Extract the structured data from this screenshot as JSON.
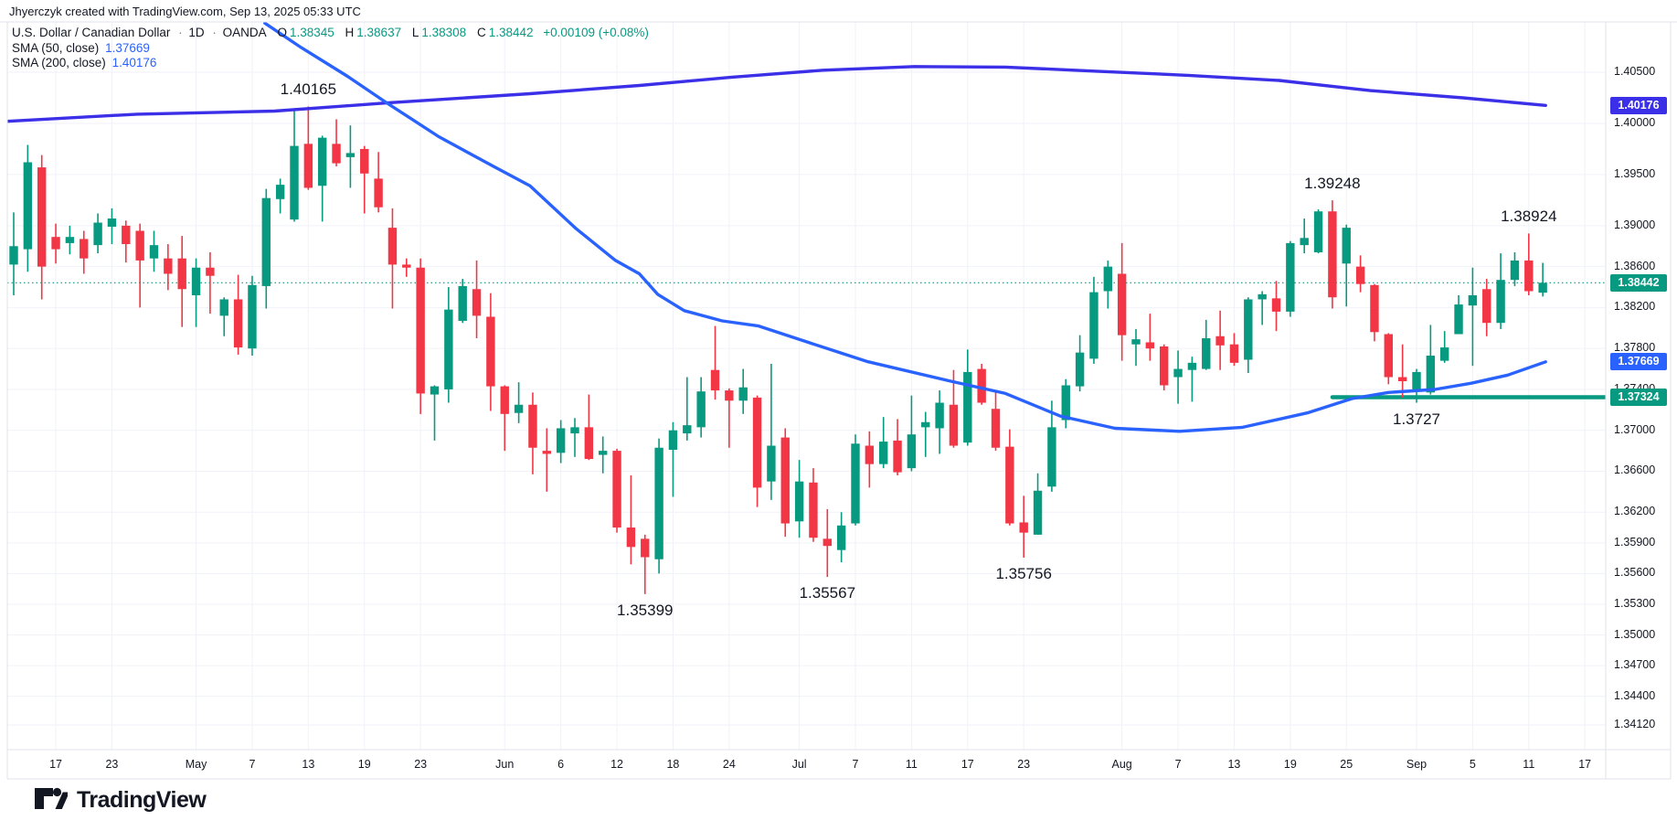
{
  "attribution": "Jhyerczyk created with TradingView.com, Sep 13, 2025 05:33 UTC",
  "legend": {
    "title": "U.S. Dollar / Canadian Dollar",
    "separator": "·",
    "interval": "1D",
    "exchange": "OANDA",
    "ohlc": [
      {
        "label": "O",
        "value": "1.38345"
      },
      {
        "label": "H",
        "value": "1.38637"
      },
      {
        "label": "L",
        "value": "1.38308"
      },
      {
        "label": "C",
        "value": "1.38442"
      }
    ],
    "change": "+0.00109 (+0.08%)",
    "sma50": {
      "label": "SMA (50, close)",
      "value": "1.37669"
    },
    "sma200": {
      "label": "SMA (200, close)",
      "value": "1.40176"
    }
  },
  "logo": {
    "text": "TradingView"
  },
  "chart_data": {
    "type": "candlestick",
    "title": "U.S. Dollar / Canadian Dollar · 1D · OANDA",
    "grid": true,
    "legend_position": "top-left",
    "colors": {
      "up": "#089981",
      "down": "#F23645",
      "grid": "#f0f2f8",
      "frame": "#e0e3eb",
      "text": "#131722"
    },
    "price_axis_labels": [
      "1.40500",
      "1.40000",
      "1.39500",
      "1.39000",
      "1.38600",
      "1.38200",
      "1.37800",
      "1.37400",
      "1.37000",
      "1.36600",
      "1.36200",
      "1.35900",
      "1.35600",
      "1.35300",
      "1.35000",
      "1.34700",
      "1.34400",
      "1.34120"
    ],
    "time_axis_ticks": [
      {
        "label": "17",
        "bar": 3
      },
      {
        "label": "23",
        "bar": 7
      },
      {
        "label": "May",
        "bar": 13
      },
      {
        "label": "7",
        "bar": 17
      },
      {
        "label": "13",
        "bar": 21
      },
      {
        "label": "19",
        "bar": 25
      },
      {
        "label": "23",
        "bar": 29
      },
      {
        "label": "Jun",
        "bar": 35
      },
      {
        "label": "6",
        "bar": 39
      },
      {
        "label": "12",
        "bar": 43
      },
      {
        "label": "18",
        "bar": 47
      },
      {
        "label": "24",
        "bar": 51
      },
      {
        "label": "Jul",
        "bar": 56
      },
      {
        "label": "7",
        "bar": 60
      },
      {
        "label": "11",
        "bar": 64
      },
      {
        "label": "17",
        "bar": 68
      },
      {
        "label": "23",
        "bar": 72
      },
      {
        "label": "Aug",
        "bar": 79
      },
      {
        "label": "7",
        "bar": 83
      },
      {
        "label": "13",
        "bar": 87
      },
      {
        "label": "19",
        "bar": 91
      },
      {
        "label": "25",
        "bar": 95
      },
      {
        "label": "Sep",
        "bar": 100
      },
      {
        "label": "5",
        "bar": 104
      },
      {
        "label": "11",
        "bar": 108
      },
      {
        "label": "17",
        "bar": 112
      }
    ],
    "candles": [
      [
        1.3862,
        1.3913,
        1.3832,
        1.388
      ],
      [
        1.3877,
        1.3979,
        1.3855,
        1.3962
      ],
      [
        1.3957,
        1.3969,
        1.3828,
        1.386
      ],
      [
        1.3889,
        1.3902,
        1.3863,
        1.3877
      ],
      [
        1.3883,
        1.39,
        1.3872,
        1.3889
      ],
      [
        1.3887,
        1.3895,
        1.3853,
        1.3868
      ],
      [
        1.3881,
        1.3912,
        1.3873,
        1.3903
      ],
      [
        1.3899,
        1.3917,
        1.3882,
        1.3907
      ],
      [
        1.39,
        1.3905,
        1.3864,
        1.3882
      ],
      [
        1.3895,
        1.3902,
        1.382,
        1.3866
      ],
      [
        1.3868,
        1.3895,
        1.3855,
        1.3881
      ],
      [
        1.3868,
        1.3882,
        1.3837,
        1.3853
      ],
      [
        1.3868,
        1.389,
        1.3801,
        1.3838
      ],
      [
        1.3832,
        1.3868,
        1.3801,
        1.3859
      ],
      [
        1.3859,
        1.3874,
        1.3814,
        1.3851
      ],
      [
        1.3812,
        1.383,
        1.3792,
        1.3828
      ],
      [
        1.3828,
        1.3852,
        1.3774,
        1.3781
      ],
      [
        1.378,
        1.3851,
        1.3773,
        1.3842
      ],
      [
        1.3841,
        1.3936,
        1.3819,
        1.3927
      ],
      [
        1.3926,
        1.3946,
        1.3912,
        1.394
      ],
      [
        1.3906,
        1.4012,
        1.3904,
        1.3978
      ],
      [
        1.398,
        1.40165,
        1.3935,
        1.3937
      ],
      [
        1.3939,
        1.3988,
        1.3904,
        1.3986
      ],
      [
        1.398,
        1.4004,
        1.3958,
        1.3961
      ],
      [
        1.3967,
        1.3998,
        1.3937,
        1.3971
      ],
      [
        1.3975,
        1.3978,
        1.3912,
        1.3951
      ],
      [
        1.3946,
        1.3972,
        1.3913,
        1.3918
      ],
      [
        1.3898,
        1.3917,
        1.3819,
        1.3862
      ],
      [
        1.3862,
        1.3868,
        1.385,
        1.3859
      ],
      [
        1.3859,
        1.3868,
        1.3716,
        1.3736
      ],
      [
        1.3735,
        1.3744,
        1.369,
        1.3743
      ],
      [
        1.374,
        1.384,
        1.3727,
        1.3818
      ],
      [
        1.3807,
        1.3848,
        1.3805,
        1.3841
      ],
      [
        1.3838,
        1.3866,
        1.379,
        1.3812
      ],
      [
        1.3811,
        1.3834,
        1.3719,
        1.3743
      ],
      [
        1.3743,
        1.3744,
        1.368,
        1.3716
      ],
      [
        1.3717,
        1.3747,
        1.3707,
        1.3725
      ],
      [
        1.3725,
        1.3737,
        1.3657,
        1.3683
      ],
      [
        1.368,
        1.3702,
        1.364,
        1.3677
      ],
      [
        1.3678,
        1.371,
        1.3668,
        1.3702
      ],
      [
        1.3697,
        1.3712,
        1.3674,
        1.3703
      ],
      [
        1.3703,
        1.3735,
        1.3671,
        1.3672
      ],
      [
        1.3676,
        1.3694,
        1.3658,
        1.368
      ],
      [
        1.368,
        1.3682,
        1.36,
        1.3605
      ],
      [
        1.3605,
        1.3656,
        1.3569,
        1.3586
      ],
      [
        1.3594,
        1.3598,
        1.35399,
        1.3576
      ],
      [
        1.3574,
        1.3692,
        1.356,
        1.3683
      ],
      [
        1.3681,
        1.3708,
        1.3635,
        1.37
      ],
      [
        1.3697,
        1.3752,
        1.369,
        1.3705
      ],
      [
        1.3703,
        1.3752,
        1.3693,
        1.3738
      ],
      [
        1.3759,
        1.3802,
        1.373,
        1.3739
      ],
      [
        1.3739,
        1.3741,
        1.3683,
        1.3729
      ],
      [
        1.3729,
        1.376,
        1.3716,
        1.3742
      ],
      [
        1.3732,
        1.3734,
        1.3625,
        1.3644
      ],
      [
        1.365,
        1.3765,
        1.3632,
        1.3685
      ],
      [
        1.3693,
        1.3702,
        1.3596,
        1.3609
      ],
      [
        1.3611,
        1.3671,
        1.3595,
        1.365
      ],
      [
        1.3649,
        1.3663,
        1.3591,
        1.3595
      ],
      [
        1.3594,
        1.3623,
        1.35567,
        1.3587
      ],
      [
        1.3583,
        1.362,
        1.3571,
        1.3607
      ],
      [
        1.3609,
        1.3696,
        1.3607,
        1.3687
      ],
      [
        1.3685,
        1.3699,
        1.3644,
        1.3667
      ],
      [
        1.3667,
        1.3713,
        1.3663,
        1.3689
      ],
      [
        1.369,
        1.3711,
        1.3656,
        1.3659
      ],
      [
        1.3663,
        1.3734,
        1.366,
        1.3696
      ],
      [
        1.3703,
        1.3718,
        1.3674,
        1.3708
      ],
      [
        1.3702,
        1.3739,
        1.3677,
        1.3727
      ],
      [
        1.3725,
        1.3759,
        1.3683,
        1.3685
      ],
      [
        1.3688,
        1.3779,
        1.3685,
        1.3757
      ],
      [
        1.376,
        1.3765,
        1.3725,
        1.3727
      ],
      [
        1.3721,
        1.3739,
        1.368,
        1.3683
      ],
      [
        1.3684,
        1.3701,
        1.3607,
        1.3609
      ],
      [
        1.361,
        1.3636,
        1.35756,
        1.36
      ],
      [
        1.3598,
        1.3658,
        1.3598,
        1.3641
      ],
      [
        1.3645,
        1.3729,
        1.364,
        1.3703
      ],
      [
        1.371,
        1.375,
        1.3702,
        1.3744
      ],
      [
        1.3743,
        1.3793,
        1.3738,
        1.3776
      ],
      [
        1.377,
        1.385,
        1.3765,
        1.3835
      ],
      [
        1.3836,
        1.3866,
        1.3819,
        1.386
      ],
      [
        1.3853,
        1.3883,
        1.3768,
        1.3793
      ],
      [
        1.3784,
        1.3799,
        1.3763,
        1.3789
      ],
      [
        1.3786,
        1.3814,
        1.3768,
        1.378
      ],
      [
        1.3782,
        1.3784,
        1.3739,
        1.3744
      ],
      [
        1.3752,
        1.3778,
        1.3726,
        1.376
      ],
      [
        1.3759,
        1.3772,
        1.3728,
        1.3766
      ],
      [
        1.376,
        1.3808,
        1.3759,
        1.379
      ],
      [
        1.3792,
        1.3817,
        1.3759,
        1.3783
      ],
      [
        1.3784,
        1.3795,
        1.3763,
        1.3766
      ],
      [
        1.3769,
        1.383,
        1.3756,
        1.3828
      ],
      [
        1.3828,
        1.3836,
        1.3803,
        1.3833
      ],
      [
        1.3829,
        1.3846,
        1.3797,
        1.3816
      ],
      [
        1.3816,
        1.3885,
        1.3811,
        1.3883
      ],
      [
        1.3881,
        1.3907,
        1.3873,
        1.3888
      ],
      [
        1.3874,
        1.3916,
        1.3873,
        1.3914
      ],
      [
        1.3914,
        1.39248,
        1.3819,
        1.383
      ],
      [
        1.3863,
        1.3901,
        1.3821,
        1.3898
      ],
      [
        1.386,
        1.3871,
        1.3835,
        1.3843
      ],
      [
        1.3842,
        1.3843,
        1.3787,
        1.3796
      ],
      [
        1.3794,
        1.3795,
        1.3745,
        1.3752
      ],
      [
        1.3752,
        1.3784,
        1.3732,
        1.3748
      ],
      [
        1.374,
        1.376,
        1.3727,
        1.3757
      ],
      [
        1.3737,
        1.3803,
        1.3735,
        1.3773
      ],
      [
        1.3768,
        1.3797,
        1.3766,
        1.3781
      ],
      [
        1.3794,
        1.3832,
        1.3794,
        1.3823
      ],
      [
        1.3822,
        1.3859,
        1.3763,
        1.3832
      ],
      [
        1.3838,
        1.3848,
        1.3792,
        1.3805
      ],
      [
        1.3805,
        1.3873,
        1.3799,
        1.3847
      ],
      [
        1.3847,
        1.3874,
        1.3841,
        1.3866
      ],
      [
        1.3866,
        1.38924,
        1.3832,
        1.3836
      ],
      [
        1.38345,
        1.38637,
        1.38308,
        1.38442
      ]
    ],
    "overlays": {
      "sma50": {
        "name": "SMA 50 close",
        "color": "#2962FF",
        "last": 1.37669,
        "points": [
          [
            17.9,
            1.4098
          ],
          [
            20.5,
            1.4074
          ],
          [
            23.8,
            1.4046
          ],
          [
            26.6,
            1.402
          ],
          [
            30.3,
            1.3987
          ],
          [
            34.2,
            1.3958
          ],
          [
            36.8,
            1.3939
          ],
          [
            40.1,
            1.3897
          ],
          [
            42.9,
            1.3866
          ],
          [
            44.6,
            1.3853
          ],
          [
            45.9,
            1.3833
          ],
          [
            47.8,
            1.3817
          ],
          [
            50.5,
            1.3807
          ],
          [
            53.1,
            1.3802
          ],
          [
            56.4,
            1.3787
          ],
          [
            60.9,
            1.3767
          ],
          [
            66.8,
            1.3748
          ],
          [
            70.7,
            1.3736
          ],
          [
            74.6,
            1.3714
          ],
          [
            78.5,
            1.3702
          ],
          [
            83.1,
            1.3699
          ],
          [
            87.6,
            1.3703
          ],
          [
            92.2,
            1.3717
          ],
          [
            95.4,
            1.3731
          ],
          [
            98,
            1.3737
          ],
          [
            101.3,
            1.374
          ],
          [
            103.9,
            1.3746
          ],
          [
            106.5,
            1.3754
          ],
          [
            109.2,
            1.37669
          ]
        ]
      },
      "sma200": {
        "name": "SMA 200 close",
        "color": "#3b2fe8",
        "last": 1.40176,
        "points": [
          [
            -0.5,
            1.4002
          ],
          [
            8.8,
            1.4009
          ],
          [
            18.6,
            1.4012
          ],
          [
            26.6,
            1.402
          ],
          [
            36.8,
            1.4029
          ],
          [
            44.6,
            1.4037
          ],
          [
            51.1,
            1.4045
          ],
          [
            57.7,
            1.4052
          ],
          [
            64.2,
            1.40555
          ],
          [
            70.7,
            1.4055
          ],
          [
            77.2,
            1.4051
          ],
          [
            83.7,
            1.4047
          ],
          [
            90.2,
            1.4042
          ],
          [
            96.7,
            1.4032
          ],
          [
            103.3,
            1.4025
          ],
          [
            109.2,
            1.40176
          ]
        ]
      },
      "close_line": {
        "price": 1.38442,
        "style": "dotted",
        "color": "#089981"
      },
      "support_line": {
        "price": 1.37324,
        "from_bar": 94,
        "color": "#089981"
      }
    },
    "axis_badges": [
      {
        "text": "1.40176",
        "color": "#3b2fe8"
      },
      {
        "text": "1.38442",
        "color": "#089981"
      },
      {
        "text": "1.37669",
        "color": "#2962FF"
      },
      {
        "text": "1.37324",
        "color": "#089981"
      }
    ],
    "annotations": [
      {
        "text": "1.40165",
        "bar": 21,
        "side": "above",
        "anchor": 1.40165
      },
      {
        "text": "1.39248",
        "bar": 94,
        "side": "above",
        "anchor": 1.39248
      },
      {
        "text": "1.38924",
        "bar": 108,
        "side": "above",
        "anchor": 1.38924
      },
      {
        "text": "1.3727",
        "bar": 100,
        "side": "below",
        "anchor": 1.3727
      },
      {
        "text": "1.35756",
        "bar": 72,
        "side": "below",
        "anchor": 1.35756
      },
      {
        "text": "1.35567",
        "bar": 58,
        "side": "below",
        "anchor": 1.35567
      },
      {
        "text": "1.35399",
        "bar": 45,
        "side": "below",
        "anchor": 1.35399
      }
    ]
  }
}
